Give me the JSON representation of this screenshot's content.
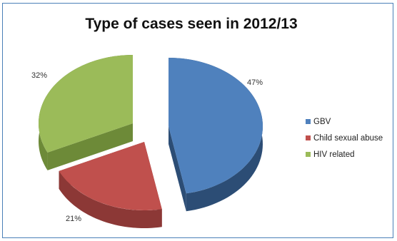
{
  "chart_data": {
    "type": "pie",
    "title": "Type of cases seen in 2012/13",
    "categories": [
      "GBV",
      "Child sexual abuse",
      "HIV related"
    ],
    "values": [
      47,
      21,
      32
    ],
    "labels": [
      "47%",
      "21%",
      "32%"
    ],
    "legend_position": "right",
    "exploded": true,
    "three_d": true
  },
  "colors": {
    "gbv_top": "#4f81bd",
    "gbv_side": "#2c4d75",
    "csa_top": "#c0504d",
    "csa_side": "#8c3836",
    "hiv_top": "#9bbb59",
    "hiv_side": "#6d8a38",
    "frame": "#4a7fb8"
  }
}
